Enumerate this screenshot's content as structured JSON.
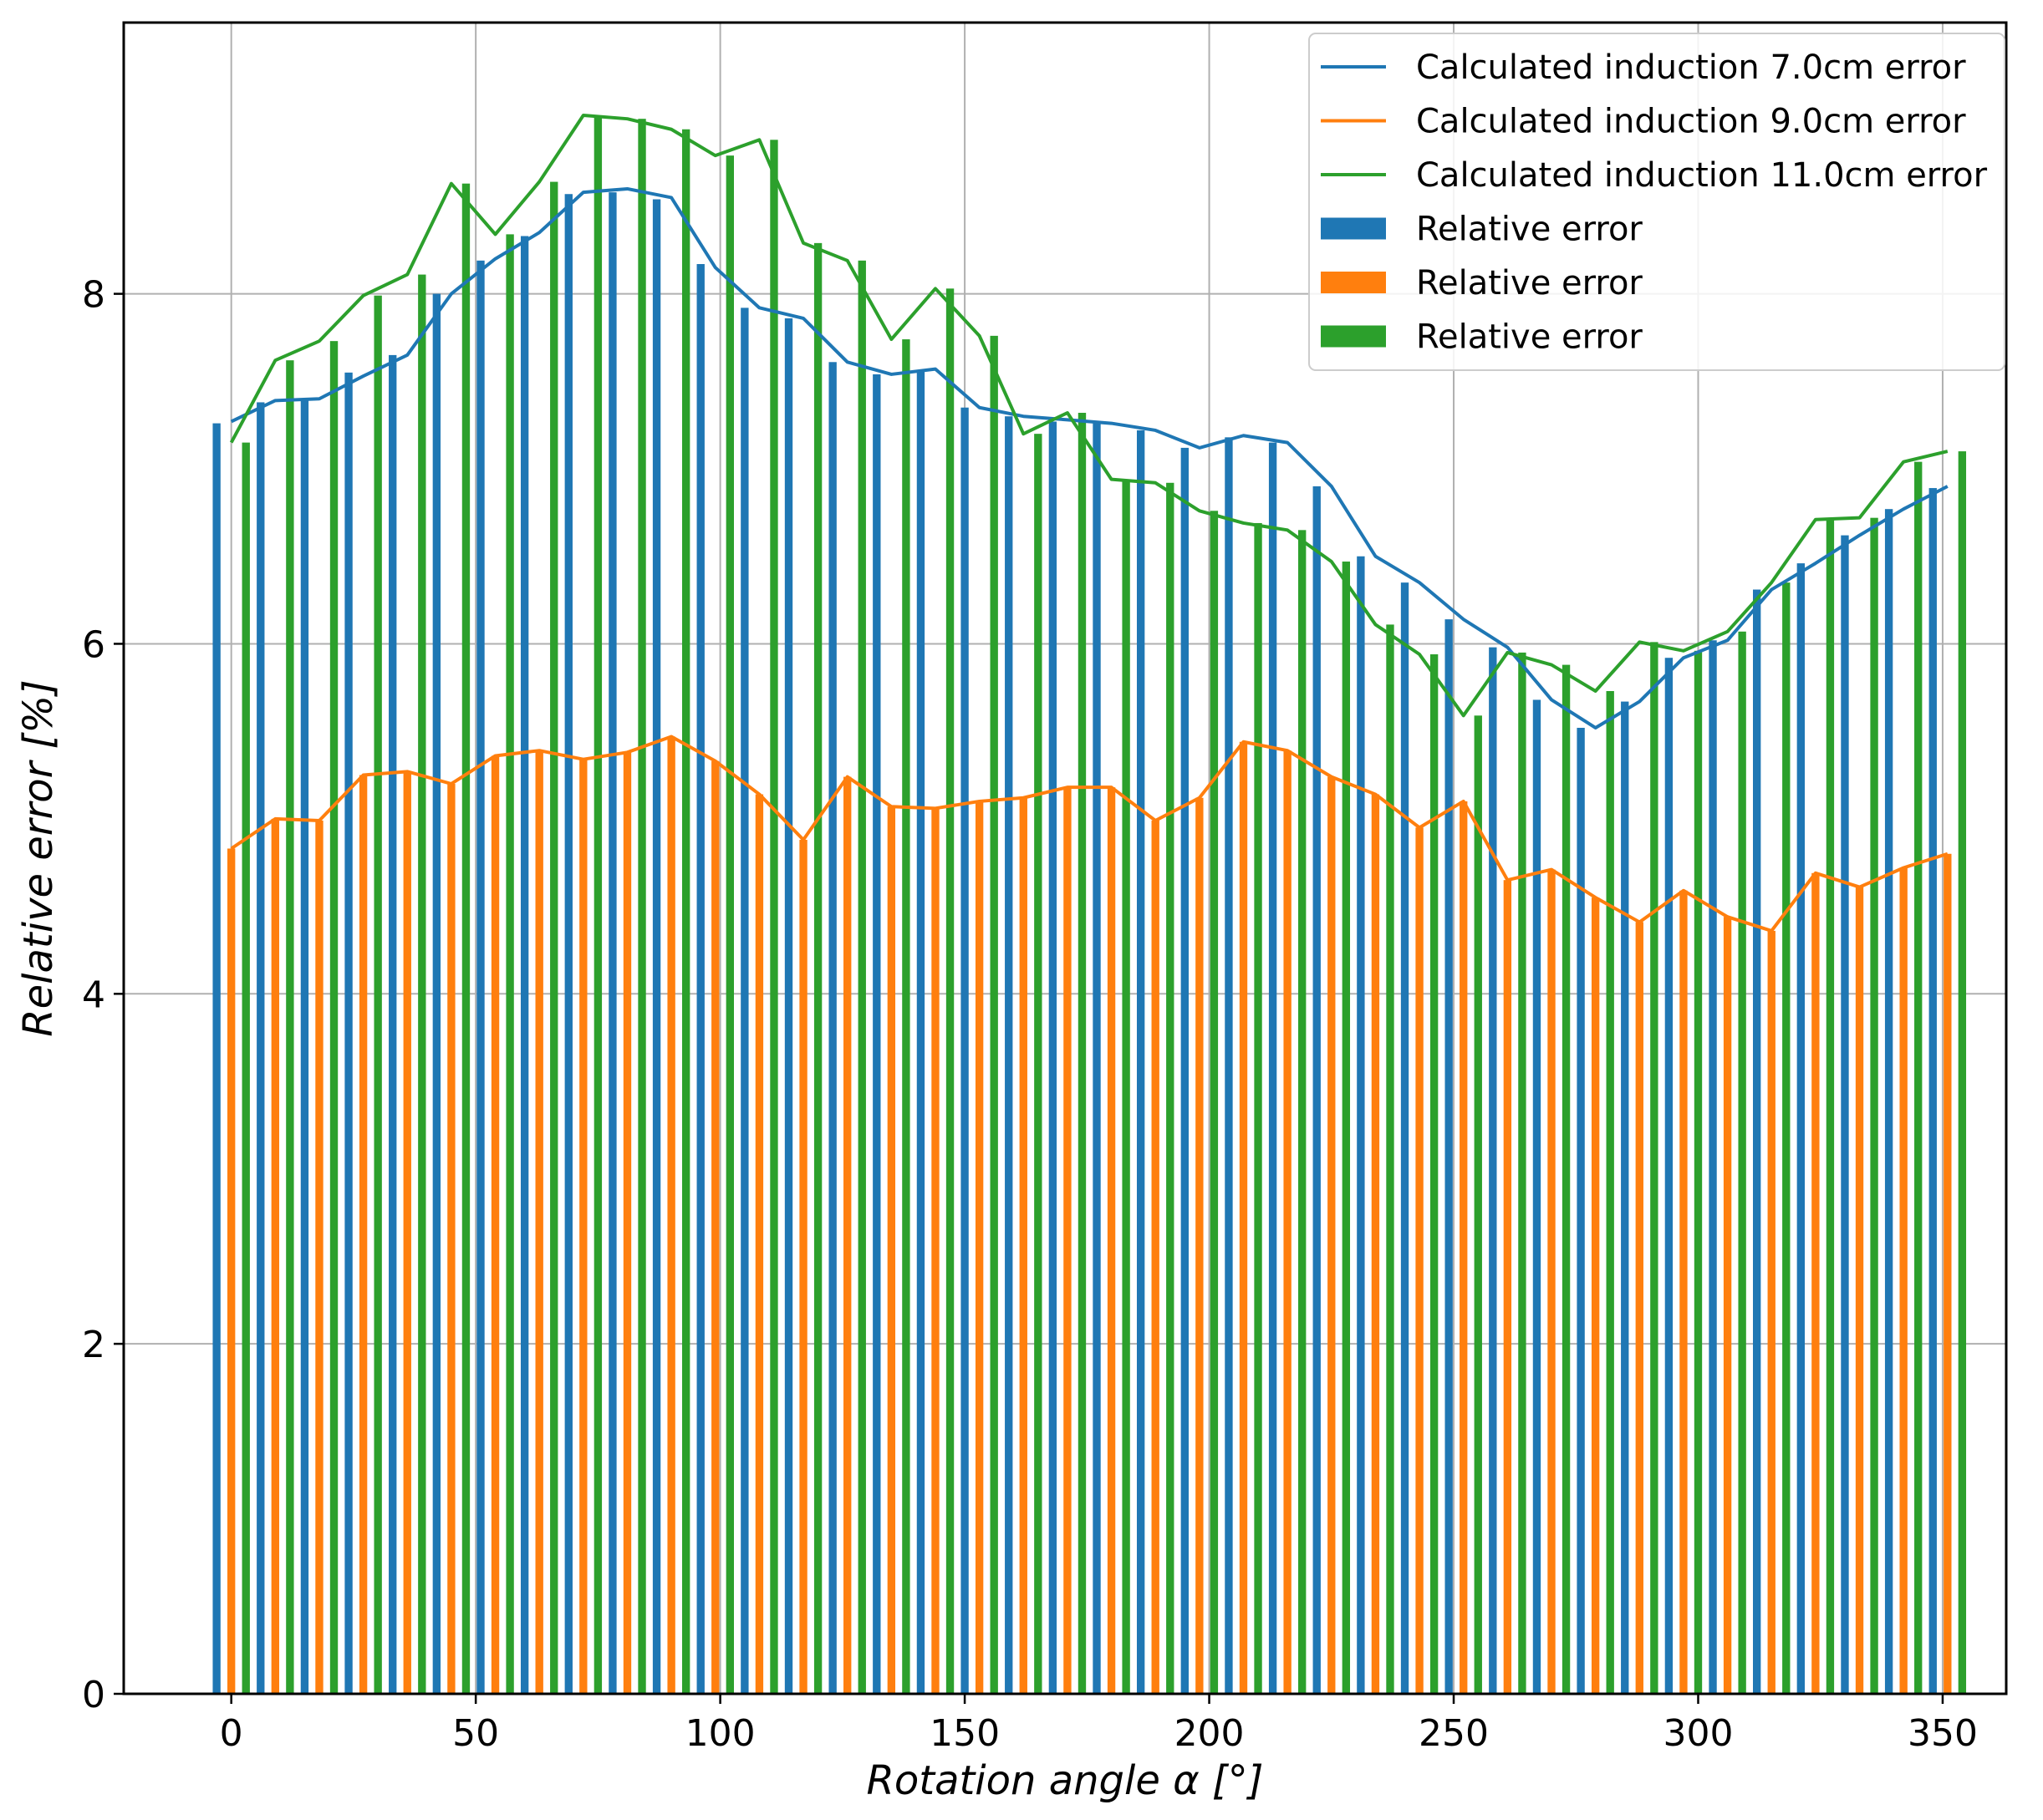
{
  "chart_data": {
    "type": "bar",
    "title": "",
    "xlabel": "Rotation angle α [°]",
    "ylabel": "Relative error [%]",
    "xlim": [
      -22,
      363
    ],
    "ylim": [
      0,
      9.55
    ],
    "xticks": [
      0,
      50,
      100,
      150,
      200,
      250,
      300,
      350
    ],
    "yticks": [
      0,
      2,
      4,
      6,
      8
    ],
    "grid": true,
    "legend_position": "top-right",
    "colors": {
      "blue": "#1f77b4",
      "orange": "#ff7f0e",
      "green": "#2ca02c"
    },
    "x": [
      0,
      9,
      18,
      27,
      36,
      45,
      54,
      63,
      72,
      81,
      90,
      99,
      108,
      117,
      126,
      135,
      144,
      153,
      162,
      171,
      180,
      189,
      198,
      207,
      216,
      225,
      234,
      243,
      252,
      261,
      270,
      279,
      288,
      297,
      306,
      315,
      324,
      333,
      342,
      351
    ],
    "bar_offsets": [
      -3,
      0,
      3
    ],
    "bar_width": 1.6,
    "series": [
      {
        "name": "Relative error",
        "line_name": "Calculated induction 7.0cm error",
        "color": "#1f77b4",
        "bar_values": [
          7.26,
          7.38,
          7.39,
          7.55,
          7.65,
          8.0,
          8.19,
          8.33,
          8.57,
          8.58,
          8.54,
          8.17,
          7.92,
          7.86,
          7.61,
          7.54,
          7.56,
          7.35,
          7.3,
          7.27,
          7.26,
          7.22,
          7.12,
          7.18,
          7.15,
          6.9,
          6.5,
          6.35,
          6.14,
          5.98,
          5.68,
          5.52,
          5.67,
          5.92,
          6.02,
          6.31,
          6.46,
          6.62,
          6.77,
          6.89
        ],
        "line_values": [
          7.27,
          7.39,
          7.4,
          7.53,
          7.65,
          8.0,
          8.2,
          8.35,
          8.58,
          8.6,
          8.55,
          8.15,
          7.92,
          7.86,
          7.61,
          7.54,
          7.57,
          7.35,
          7.3,
          7.28,
          7.26,
          7.22,
          7.12,
          7.19,
          7.15,
          6.9,
          6.5,
          6.35,
          6.14,
          5.98,
          5.68,
          5.52,
          5.67,
          5.92,
          6.02,
          6.31,
          6.46,
          6.62,
          6.77,
          6.9
        ]
      },
      {
        "name": "Relative error",
        "line_name": "Calculated induction 9.0cm error",
        "color": "#ff7f0e",
        "bar_values": [
          4.83,
          5.0,
          4.99,
          5.25,
          5.27,
          5.2,
          5.36,
          5.39,
          5.34,
          5.38,
          5.47,
          5.33,
          5.14,
          4.88,
          5.24,
          5.07,
          5.06,
          5.1,
          5.12,
          5.18,
          5.18,
          4.99,
          5.12,
          5.44,
          5.39,
          5.24,
          5.14,
          4.95,
          5.1,
          4.65,
          4.71,
          4.55,
          4.41,
          4.59,
          4.44,
          4.36,
          4.69,
          4.61,
          4.72,
          4.8
        ],
        "line_values": [
          4.83,
          5.0,
          4.99,
          5.25,
          5.27,
          5.2,
          5.36,
          5.39,
          5.34,
          5.38,
          5.47,
          5.33,
          5.14,
          4.88,
          5.24,
          5.07,
          5.06,
          5.1,
          5.12,
          5.18,
          5.18,
          4.99,
          5.12,
          5.44,
          5.39,
          5.24,
          5.14,
          4.95,
          5.1,
          4.65,
          4.71,
          4.55,
          4.41,
          4.59,
          4.44,
          4.36,
          4.69,
          4.61,
          4.72,
          4.8
        ]
      },
      {
        "name": "Relative error",
        "line_name": "Calculated induction 11.0cm error",
        "color": "#2ca02c",
        "bar_values": [
          7.15,
          7.62,
          7.73,
          7.99,
          8.11,
          8.63,
          8.34,
          8.64,
          9.02,
          9.0,
          8.94,
          8.79,
          8.88,
          8.29,
          8.19,
          7.74,
          8.03,
          7.76,
          7.2,
          7.32,
          6.94,
          6.92,
          6.76,
          6.69,
          6.65,
          6.47,
          6.11,
          5.94,
          5.59,
          5.95,
          5.88,
          5.73,
          6.01,
          5.96,
          6.07,
          6.35,
          6.71,
          6.72,
          7.04,
          7.1
        ],
        "line_values": [
          7.15,
          7.62,
          7.73,
          7.99,
          8.11,
          8.63,
          8.34,
          8.64,
          9.02,
          9.0,
          8.94,
          8.79,
          8.88,
          8.29,
          8.19,
          7.74,
          8.03,
          7.76,
          7.2,
          7.32,
          6.94,
          6.92,
          6.76,
          6.69,
          6.65,
          6.47,
          6.11,
          5.94,
          5.59,
          5.95,
          5.88,
          5.73,
          6.01,
          5.96,
          6.07,
          6.35,
          6.71,
          6.72,
          7.04,
          7.1
        ]
      }
    ],
    "legend": [
      {
        "kind": "line",
        "label": "Calculated induction 7.0cm error",
        "color": "#1f77b4"
      },
      {
        "kind": "line",
        "label": "Calculated induction 9.0cm error",
        "color": "#ff7f0e"
      },
      {
        "kind": "line",
        "label": "Calculated induction 11.0cm error",
        "color": "#2ca02c"
      },
      {
        "kind": "bar",
        "label": "Relative error",
        "color": "#1f77b4"
      },
      {
        "kind": "bar",
        "label": "Relative error",
        "color": "#ff7f0e"
      },
      {
        "kind": "bar",
        "label": "Relative error",
        "color": "#2ca02c"
      }
    ]
  }
}
